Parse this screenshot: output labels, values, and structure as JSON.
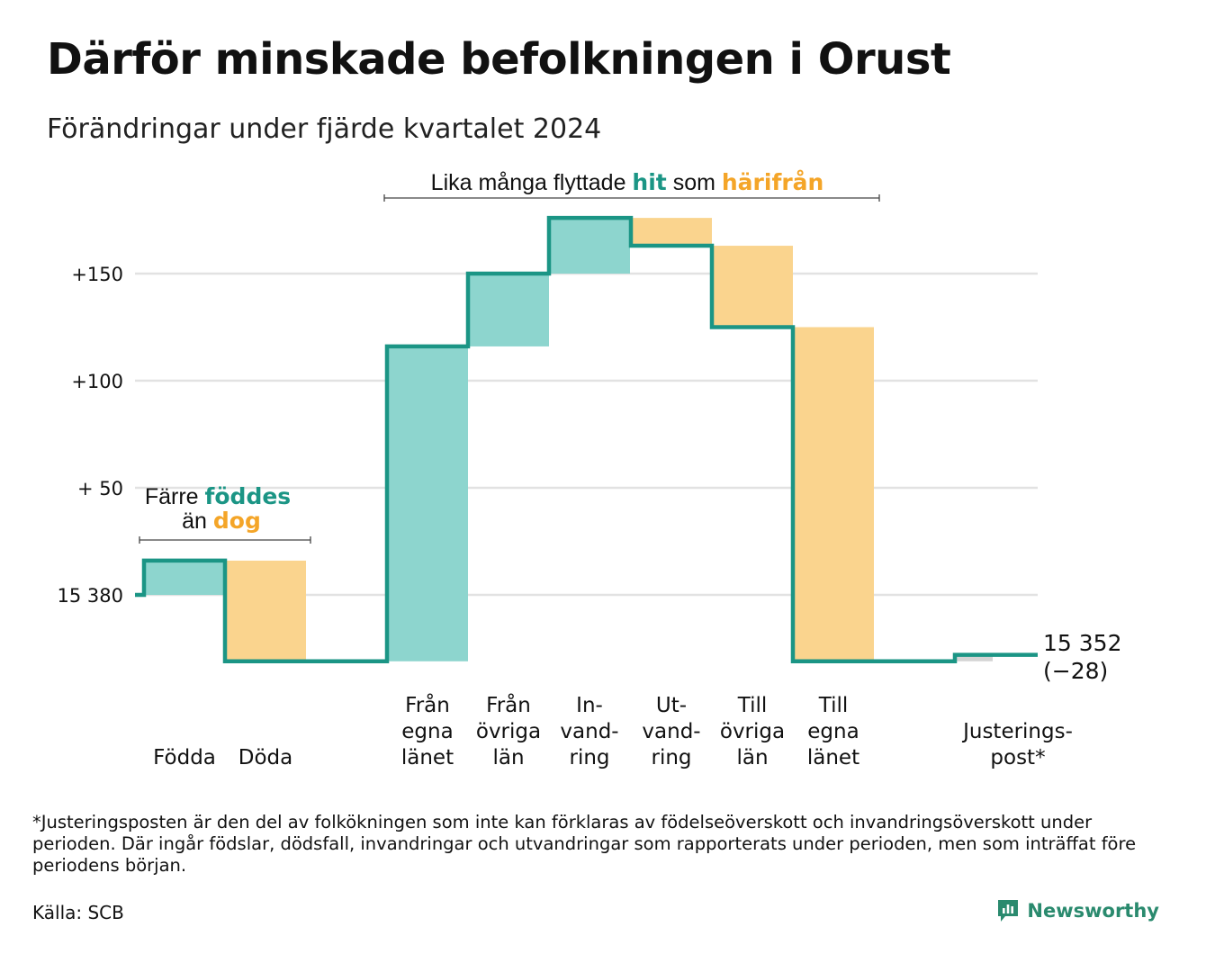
{
  "title": "Därför minskade befolkningen i Orust",
  "subtitle": "Förändringar under fjärde kvartalet 2024",
  "chart_data": {
    "type": "waterfall",
    "start_population": 15380,
    "end_population": 15352,
    "y_tick_labels": [
      "15 380",
      "+ 50",
      "+100",
      "+150"
    ],
    "y_tick_values": [
      0,
      50,
      100,
      150
    ],
    "ylim": [
      -31,
      184
    ],
    "categories": [
      {
        "lines": [
          "Födda"
        ],
        "value": 16,
        "kind": "in"
      },
      {
        "lines": [
          "Döda"
        ],
        "value": -47,
        "kind": "out"
      },
      {
        "lines": [
          "Från",
          "egna",
          "länet"
        ],
        "value": 147,
        "kind": "in"
      },
      {
        "lines": [
          "Från",
          "övriga",
          "län"
        ],
        "value": 34,
        "kind": "in"
      },
      {
        "lines": [
          "In-",
          "vand-",
          "ring"
        ],
        "value": 26,
        "kind": "in"
      },
      {
        "lines": [
          "Ut-",
          "vand-",
          "ring"
        ],
        "value": -13,
        "kind": "out"
      },
      {
        "lines": [
          "Till",
          "övriga",
          "län"
        ],
        "value": -38,
        "kind": "out"
      },
      {
        "lines": [
          "Till",
          "egna",
          "länet"
        ],
        "value": -156,
        "kind": "out"
      },
      {
        "lines": [
          "Justerings-",
          "post*"
        ],
        "value": 3,
        "kind": "adj"
      }
    ],
    "end_label_value": "15 352",
    "end_label_change": "(−28)",
    "annotation_births": {
      "line1": "Färre",
      "hl1": "föddes",
      "line2": "än",
      "hl2": "dog"
    },
    "annotation_migration": {
      "text1": "Lika många flyttade",
      "hl1": "hit",
      "text2": "som",
      "hl2": "härifrån"
    },
    "colors": {
      "in": "#8dd5ce",
      "out": "#fad48e",
      "adj": "#d4d4d4",
      "line": "#1b9585",
      "hl_in": "#1b9585",
      "hl_out": "#f4a528",
      "grid": "#e2e2e2"
    },
    "grid": true
  },
  "footnote": "*Justeringsposten är den del av folkökningen som inte kan förklaras av födelseöverskott och invandringsöverskott under perioden. Där ingår födslar, dödsfall, invandringar och utvandringar som rapporterats under perioden, men som inträffat före periodens början.",
  "source": "Källa: SCB",
  "brand": {
    "name": "Newsworthy",
    "icon": "newsworthy-logo-icon"
  }
}
